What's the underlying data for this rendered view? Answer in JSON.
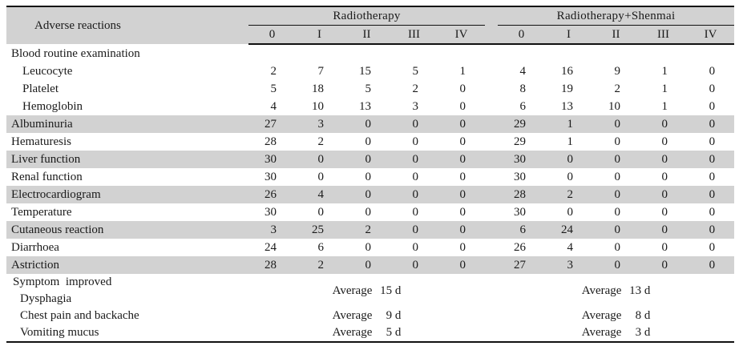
{
  "table": {
    "corner_header": "Adverse reactions",
    "groups": [
      {
        "label": "Radiotherapy",
        "grades": [
          "0",
          "I",
          "II",
          "III",
          "IV"
        ]
      },
      {
        "label": "Radiotherapy+Shenmai",
        "grades": [
          "0",
          "I",
          "II",
          "III",
          "IV"
        ]
      }
    ],
    "rows": [
      {
        "label": "Blood routine examination",
        "indent": 1,
        "shaded": false,
        "radiotherapy": [
          "",
          "",
          "",
          "",
          ""
        ],
        "shenmai": [
          "",
          "",
          "",
          "",
          ""
        ]
      },
      {
        "label": "Leucocyte",
        "indent": 2,
        "shaded": false,
        "radiotherapy": [
          2,
          7,
          15,
          5,
          1
        ],
        "shenmai": [
          4,
          16,
          9,
          1,
          0
        ]
      },
      {
        "label": "Platelet",
        "indent": 2,
        "shaded": false,
        "radiotherapy": [
          5,
          18,
          5,
          2,
          0
        ],
        "shenmai": [
          8,
          19,
          2,
          1,
          0
        ]
      },
      {
        "label": "Hemoglobin",
        "indent": 2,
        "shaded": false,
        "radiotherapy": [
          4,
          10,
          13,
          3,
          0
        ],
        "shenmai": [
          6,
          13,
          10,
          1,
          0
        ]
      },
      {
        "label": "Albuminuria",
        "indent": 1,
        "shaded": true,
        "radiotherapy": [
          27,
          3,
          0,
          0,
          0
        ],
        "shenmai": [
          29,
          1,
          0,
          0,
          0
        ]
      },
      {
        "label": "Hematuresis",
        "indent": 1,
        "shaded": false,
        "radiotherapy": [
          28,
          2,
          0,
          0,
          0
        ],
        "shenmai": [
          29,
          1,
          0,
          0,
          0
        ]
      },
      {
        "label": "Liver function",
        "indent": 1,
        "shaded": true,
        "radiotherapy": [
          30,
          0,
          0,
          0,
          0
        ],
        "shenmai": [
          30,
          0,
          0,
          0,
          0
        ]
      },
      {
        "label": "Renal function",
        "indent": 1,
        "shaded": false,
        "radiotherapy": [
          30,
          0,
          0,
          0,
          0
        ],
        "shenmai": [
          30,
          0,
          0,
          0,
          0
        ]
      },
      {
        "label": "Electrocardiogram",
        "indent": 1,
        "shaded": true,
        "radiotherapy": [
          26,
          4,
          0,
          0,
          0
        ],
        "shenmai": [
          28,
          2,
          0,
          0,
          0
        ]
      },
      {
        "label": "Temperature",
        "indent": 1,
        "shaded": false,
        "radiotherapy": [
          30,
          0,
          0,
          0,
          0
        ],
        "shenmai": [
          30,
          0,
          0,
          0,
          0
        ]
      },
      {
        "label": "Cutaneous reaction",
        "indent": 1,
        "shaded": true,
        "radiotherapy": [
          3,
          25,
          2,
          0,
          0
        ],
        "shenmai": [
          6,
          24,
          0,
          0,
          0
        ]
      },
      {
        "label": "Diarrhoea",
        "indent": 1,
        "shaded": false,
        "radiotherapy": [
          24,
          6,
          0,
          0,
          0
        ],
        "shenmai": [
          26,
          4,
          0,
          0,
          0
        ]
      },
      {
        "label": "Astriction",
        "indent": 1,
        "shaded": true,
        "radiotherapy": [
          28,
          2,
          0,
          0,
          0
        ],
        "shenmai": [
          27,
          3,
          0,
          0,
          0
        ]
      }
    ],
    "symptom_section": {
      "header": "Symptom  improved",
      "avg_label": "Average",
      "rows": [
        {
          "label": "Dysphagia",
          "radiotherapy_avg": "15 d",
          "shenmai_avg": "13 d"
        },
        {
          "label": "Chest pain and backache",
          "radiotherapy_avg": "9 d",
          "shenmai_avg": "8 d"
        },
        {
          "label": "Vomiting mucus",
          "radiotherapy_avg": "5 d",
          "shenmai_avg": "3 d"
        }
      ]
    },
    "colors": {
      "stripe_bg": "#d2d2d2",
      "header_bg": "#d2d2d2",
      "rule_line": "#111111",
      "text": "#1a1a1a"
    }
  }
}
